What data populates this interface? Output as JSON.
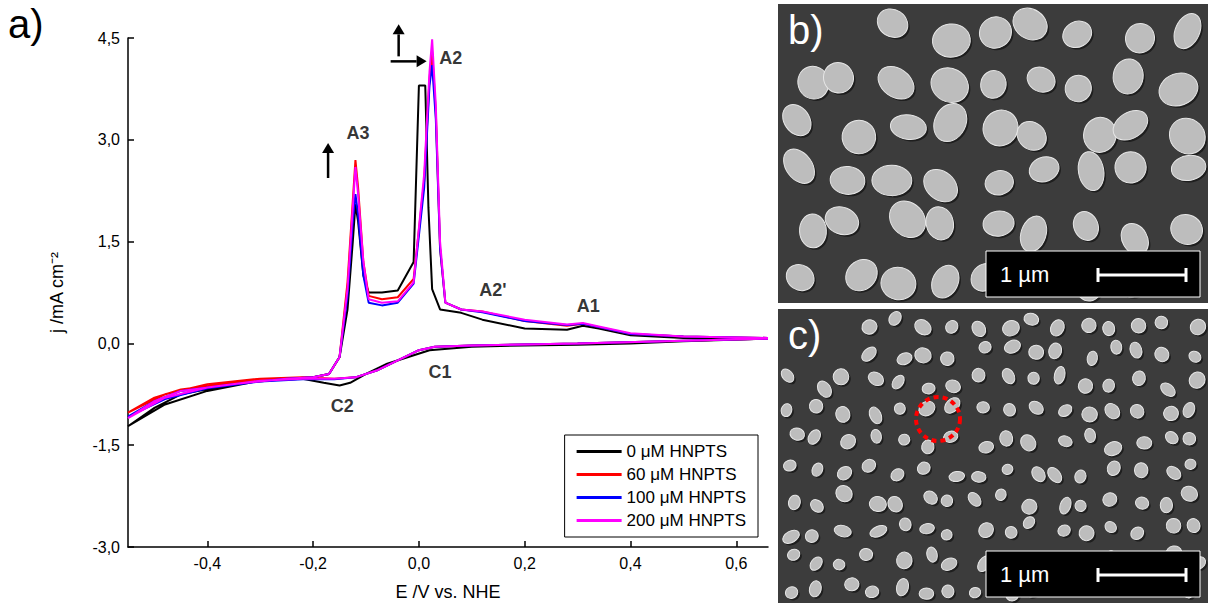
{
  "chart_data": {
    "type": "line",
    "panel_label": "a)",
    "x_label": "E /V vs. NHE",
    "y_label": "j /mA cm⁻²",
    "xlim": [
      -0.55,
      0.66
    ],
    "ylim": [
      -3.0,
      4.5
    ],
    "xticks": [
      {
        "value": -0.4,
        "label": "-0,4"
      },
      {
        "value": -0.2,
        "label": "-0,2"
      },
      {
        "value": 0.0,
        "label": "0,0"
      },
      {
        "value": 0.2,
        "label": "0,2"
      },
      {
        "value": 0.4,
        "label": "0,4"
      },
      {
        "value": 0.6,
        "label": "0,6"
      }
    ],
    "yticks": [
      {
        "value": -3.0,
        "label": "-3,0"
      },
      {
        "value": -1.5,
        "label": "-1,5"
      },
      {
        "value": 0.0,
        "label": "0,0"
      },
      {
        "value": 1.5,
        "label": "1,5"
      },
      {
        "value": 3.0,
        "label": "3,0"
      },
      {
        "value": 4.5,
        "label": "4,5"
      }
    ],
    "grid": false,
    "legend": "lower right",
    "series": [
      {
        "name": "0 μM HNPTS",
        "color": "#000000",
        "x": [
          0.66,
          0.5,
          0.4,
          0.3,
          0.2,
          0.1,
          0.02,
          -0.02,
          -0.06,
          -0.1,
          -0.13,
          -0.15,
          -0.18,
          -0.22,
          -0.3,
          -0.4,
          -0.48,
          -0.55,
          -0.5,
          -0.45,
          -0.35,
          -0.25,
          -0.2,
          -0.17,
          -0.15,
          -0.135,
          -0.125,
          -0.12,
          -0.115,
          -0.105,
          -0.095,
          -0.07,
          -0.04,
          -0.01,
          0.0,
          0.012,
          0.018,
          0.025,
          0.04,
          0.08,
          0.12,
          0.2,
          0.28,
          0.31,
          0.34,
          0.4,
          0.5,
          0.66
        ],
        "values": [
          0.07,
          0.03,
          0.0,
          -0.02,
          -0.03,
          -0.05,
          -0.1,
          -0.2,
          -0.3,
          -0.45,
          -0.58,
          -0.62,
          -0.58,
          -0.52,
          -0.55,
          -0.7,
          -0.9,
          -1.22,
          -0.95,
          -0.75,
          -0.6,
          -0.52,
          -0.5,
          -0.45,
          -0.2,
          0.5,
          1.5,
          2.05,
          1.8,
          1.0,
          0.75,
          0.75,
          0.78,
          1.2,
          3.8,
          3.8,
          2.0,
          0.8,
          0.5,
          0.45,
          0.35,
          0.22,
          0.2,
          0.26,
          0.22,
          0.12,
          0.08,
          0.08
        ]
      },
      {
        "name": "60 μM HNPTS",
        "color": "#ff0000",
        "x": [
          0.66,
          0.5,
          0.3,
          0.1,
          0.03,
          0.0,
          -0.04,
          -0.08,
          -0.12,
          -0.16,
          -0.22,
          -0.3,
          -0.4,
          -0.48,
          -0.55,
          -0.5,
          -0.45,
          -0.35,
          -0.25,
          -0.2,
          -0.17,
          -0.15,
          -0.135,
          -0.125,
          -0.12,
          -0.115,
          -0.105,
          -0.095,
          -0.07,
          -0.04,
          -0.01,
          0.01,
          0.02,
          0.025,
          0.032,
          0.04,
          0.05,
          0.08,
          0.12,
          0.2,
          0.28,
          0.31,
          0.34,
          0.4,
          0.5,
          0.66
        ],
        "values": [
          0.07,
          0.04,
          0.0,
          -0.03,
          -0.05,
          -0.1,
          -0.25,
          -0.4,
          -0.5,
          -0.52,
          -0.5,
          -0.52,
          -0.6,
          -0.75,
          -1.02,
          -0.8,
          -0.68,
          -0.58,
          -0.52,
          -0.5,
          -0.45,
          -0.2,
          0.9,
          2.1,
          2.7,
          2.3,
          1.2,
          0.7,
          0.65,
          0.68,
          0.95,
          2.4,
          3.9,
          4.3,
          3.4,
          1.4,
          0.6,
          0.5,
          0.47,
          0.33,
          0.26,
          0.29,
          0.24,
          0.14,
          0.1,
          0.08
        ]
      },
      {
        "name": "100 μM HNPTS",
        "color": "#0000ff",
        "x": [
          0.66,
          0.5,
          0.3,
          0.1,
          0.03,
          0.0,
          -0.04,
          -0.08,
          -0.12,
          -0.16,
          -0.22,
          -0.3,
          -0.4,
          -0.48,
          -0.55,
          -0.5,
          -0.45,
          -0.35,
          -0.25,
          -0.2,
          -0.17,
          -0.15,
          -0.135,
          -0.125,
          -0.12,
          -0.115,
          -0.105,
          -0.095,
          -0.07,
          -0.04,
          -0.01,
          0.01,
          0.02,
          0.025,
          0.032,
          0.04,
          0.05,
          0.08,
          0.12,
          0.2,
          0.28,
          0.31,
          0.34,
          0.4,
          0.5,
          0.66
        ],
        "values": [
          0.07,
          0.04,
          0.0,
          -0.03,
          -0.05,
          -0.1,
          -0.25,
          -0.4,
          -0.5,
          -0.53,
          -0.53,
          -0.56,
          -0.66,
          -0.82,
          -1.08,
          -0.85,
          -0.7,
          -0.6,
          -0.52,
          -0.5,
          -0.45,
          -0.2,
          0.7,
          1.8,
          2.2,
          1.9,
          1.0,
          0.6,
          0.56,
          0.6,
          0.88,
          2.3,
          3.8,
          4.1,
          3.3,
          1.4,
          0.6,
          0.5,
          0.46,
          0.33,
          0.27,
          0.29,
          0.24,
          0.14,
          0.1,
          0.08
        ]
      },
      {
        "name": "200 μM HNPTS",
        "color": "#ff00ff",
        "x": [
          0.66,
          0.5,
          0.3,
          0.1,
          0.03,
          0.0,
          -0.04,
          -0.08,
          -0.12,
          -0.16,
          -0.22,
          -0.3,
          -0.4,
          -0.48,
          -0.55,
          -0.5,
          -0.45,
          -0.35,
          -0.25,
          -0.2,
          -0.17,
          -0.15,
          -0.135,
          -0.125,
          -0.12,
          -0.115,
          -0.105,
          -0.095,
          -0.07,
          -0.04,
          -0.01,
          0.01,
          0.02,
          0.025,
          0.032,
          0.04,
          0.05,
          0.08,
          0.12,
          0.2,
          0.28,
          0.31,
          0.34,
          0.4,
          0.5,
          0.66
        ],
        "values": [
          0.07,
          0.04,
          0.0,
          -0.03,
          -0.05,
          -0.1,
          -0.25,
          -0.4,
          -0.5,
          -0.52,
          -0.52,
          -0.55,
          -0.65,
          -0.8,
          -1.1,
          -0.85,
          -0.7,
          -0.6,
          -0.52,
          -0.5,
          -0.45,
          -0.2,
          0.8,
          2.0,
          2.6,
          2.2,
          1.2,
          0.65,
          0.6,
          0.62,
          0.9,
          2.5,
          4.0,
          4.48,
          3.5,
          1.5,
          0.6,
          0.5,
          0.47,
          0.35,
          0.28,
          0.3,
          0.25,
          0.15,
          0.1,
          0.08
        ]
      }
    ],
    "annotations": [
      {
        "text": "A3",
        "x": -0.115,
        "y": 3.1
      },
      {
        "text": "A2",
        "x": 0.06,
        "y": 4.2
      },
      {
        "text": "A2'",
        "x": 0.14,
        "y": 0.78
      },
      {
        "text": "A1",
        "x": 0.32,
        "y": 0.55
      },
      {
        "text": "C1",
        "x": 0.04,
        "y": -0.42
      },
      {
        "text": "C2",
        "x": -0.145,
        "y": -0.92
      }
    ]
  },
  "images": [
    {
      "label": "b)",
      "scale_bar": "1 µm"
    },
    {
      "label": "c)",
      "scale_bar": "1 µm"
    }
  ]
}
